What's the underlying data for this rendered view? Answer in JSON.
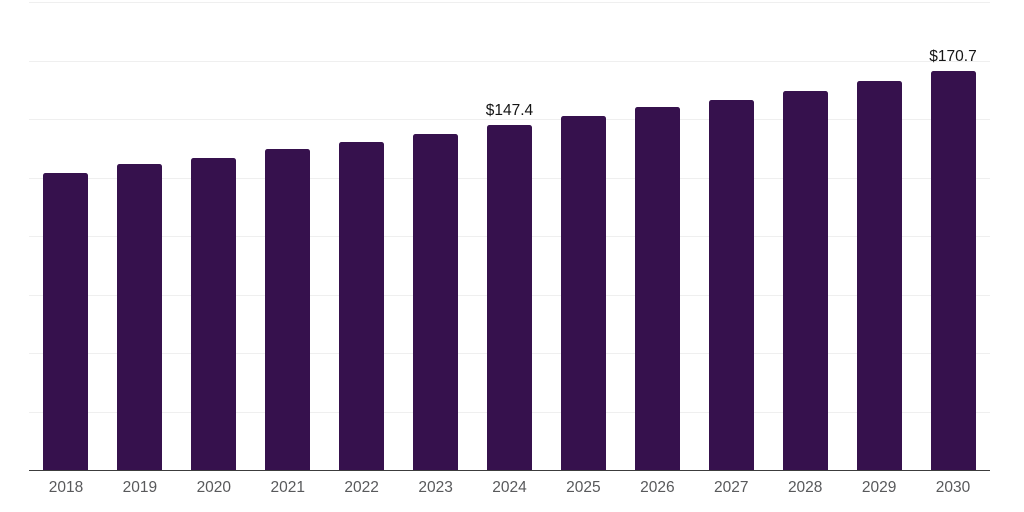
{
  "colors": {
    "bar": "#36114d",
    "gridline": "#efefef",
    "axis_line": "#3c3c3c",
    "tick_label": "#58595b",
    "data_label": "#151515",
    "background": "#ffffff"
  },
  "chart_data": {
    "type": "bar",
    "categories": [
      "2018",
      "2019",
      "2020",
      "2021",
      "2022",
      "2023",
      "2024",
      "2025",
      "2026",
      "2027",
      "2028",
      "2029",
      "2030"
    ],
    "values": [
      127.1,
      130.6,
      133.5,
      137.0,
      140.3,
      143.7,
      147.4,
      151.1,
      155.0,
      158.2,
      162.1,
      166.3,
      170.7
    ],
    "annotations": [
      {
        "category": "2024",
        "label": "$147.4"
      },
      {
        "category": "2030",
        "label": "$170.7"
      }
    ],
    "title": "",
    "xlabel": "",
    "ylabel": "",
    "ylim": [
      0,
      200
    ],
    "gridline_step": 25,
    "grid": true,
    "legend": false,
    "y_tick_labels_visible": false
  }
}
